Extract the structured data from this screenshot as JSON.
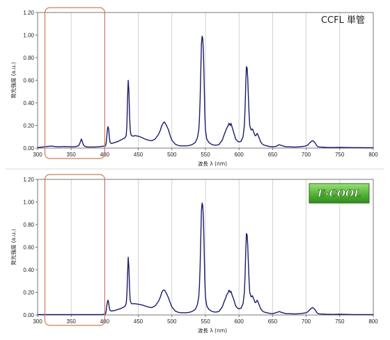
{
  "chart_data": [
    {
      "type": "line",
      "title": "CCFL 単管",
      "xlabel": "波長 λ (nm)",
      "ylabel": "発光強度 (a.u.)",
      "xlim": [
        300,
        800
      ],
      "ylim": [
        0,
        1.2
      ],
      "xticks": [
        "300",
        "350",
        "400",
        "450",
        "500",
        "550",
        "600",
        "650",
        "700",
        "750",
        "800"
      ],
      "yticks": [
        "0.00",
        "0.20",
        "0.40",
        "0.60",
        "0.80",
        "1.00",
        "1.20"
      ],
      "grid": "vertical",
      "highlight_range": [
        315,
        400
      ],
      "highlight_color": "#d07a5a",
      "line_color": "#1a1a6e",
      "series": [
        {
          "x": [
            300,
            305,
            310,
            315,
            320,
            325,
            330,
            335,
            340,
            345,
            350,
            355,
            360,
            362,
            364,
            365,
            366,
            367,
            368,
            370,
            372,
            375,
            380,
            385,
            390,
            395,
            400,
            401,
            402,
            403,
            404,
            405,
            406,
            407,
            408,
            410,
            415,
            420,
            425,
            430,
            432,
            433,
            434,
            435,
            436,
            437,
            438,
            439,
            440,
            442,
            445,
            450,
            455,
            460,
            465,
            470,
            475,
            480,
            483,
            485,
            487,
            488,
            489,
            490,
            492,
            495,
            498,
            500,
            505,
            510,
            515,
            520,
            525,
            530,
            535,
            538,
            540,
            541,
            542,
            543,
            544,
            545,
            546,
            547,
            548,
            549,
            550,
            552,
            555,
            560,
            565,
            570,
            575,
            578,
            580,
            582,
            584,
            585,
            586,
            587,
            588,
            590,
            592,
            595,
            598,
            600,
            603,
            606,
            608,
            609,
            610,
            611,
            612,
            613,
            614,
            615,
            616,
            618,
            620,
            622,
            624,
            625,
            626,
            627,
            628,
            630,
            632,
            634,
            636,
            638,
            640,
            645,
            650,
            655,
            660,
            665,
            670,
            675,
            680,
            685,
            690,
            695,
            700,
            703,
            705,
            707,
            708,
            709,
            710,
            711,
            712,
            714,
            716,
            718,
            720,
            725,
            730,
            740,
            750,
            760,
            770,
            780,
            790,
            800
          ],
          "y": [
            0.005,
            0.008,
            0.012,
            0.015,
            0.018,
            0.015,
            0.012,
            0.013,
            0.014,
            0.013,
            0.012,
            0.012,
            0.018,
            0.03,
            0.06,
            0.08,
            0.07,
            0.05,
            0.03,
            0.018,
            0.012,
            0.01,
            0.01,
            0.01,
            0.012,
            0.015,
            0.018,
            0.02,
            0.04,
            0.1,
            0.17,
            0.19,
            0.16,
            0.09,
            0.05,
            0.04,
            0.05,
            0.06,
            0.075,
            0.09,
            0.11,
            0.2,
            0.45,
            0.6,
            0.5,
            0.28,
            0.16,
            0.12,
            0.11,
            0.105,
            0.11,
            0.105,
            0.095,
            0.08,
            0.07,
            0.065,
            0.08,
            0.12,
            0.16,
            0.2,
            0.22,
            0.23,
            0.23,
            0.22,
            0.2,
            0.16,
            0.1,
            0.07,
            0.035,
            0.022,
            0.02,
            0.02,
            0.022,
            0.03,
            0.05,
            0.09,
            0.16,
            0.25,
            0.42,
            0.68,
            0.92,
            0.99,
            0.97,
            0.85,
            0.6,
            0.32,
            0.16,
            0.08,
            0.05,
            0.03,
            0.025,
            0.03,
            0.07,
            0.12,
            0.15,
            0.18,
            0.2,
            0.22,
            0.21,
            0.2,
            0.22,
            0.18,
            0.14,
            0.08,
            0.06,
            0.055,
            0.06,
            0.1,
            0.2,
            0.35,
            0.55,
            0.72,
            0.71,
            0.62,
            0.45,
            0.3,
            0.2,
            0.16,
            0.17,
            0.14,
            0.11,
            0.11,
            0.12,
            0.13,
            0.12,
            0.09,
            0.06,
            0.04,
            0.03,
            0.025,
            0.022,
            0.015,
            0.012,
            0.015,
            0.03,
            0.02,
            0.012,
            0.012,
            0.01,
            0.01,
            0.012,
            0.015,
            0.02,
            0.03,
            0.045,
            0.055,
            0.06,
            0.065,
            0.065,
            0.06,
            0.055,
            0.04,
            0.02,
            0.012,
            0.01,
            0.008,
            0.006,
            0.005,
            0.006,
            0.005,
            0.004,
            0.004,
            0.003,
            0.003
          ]
        }
      ]
    },
    {
      "type": "line",
      "title": "",
      "xlabel": "波長 λ (nm)",
      "ylabel": "発光強度 (a.u.)",
      "xlim": [
        300,
        800
      ],
      "ylim": [
        0,
        1.2
      ],
      "xticks": [
        "300",
        "350",
        "400",
        "450",
        "500",
        "550",
        "600",
        "650",
        "700",
        "750",
        "800"
      ],
      "yticks": [
        "0.00",
        "0.20",
        "0.40",
        "0.60",
        "0.80",
        "1.00",
        "1.20"
      ],
      "grid": "vertical",
      "highlight_range": [
        315,
        400
      ],
      "highlight_color": "#d07a5a",
      "line_color": "#1a1a6e",
      "badge": {
        "text": "E-COOL",
        "color": "#58b838"
      },
      "series": [
        {
          "x": [
            300,
            305,
            310,
            315,
            320,
            325,
            330,
            335,
            340,
            345,
            350,
            355,
            360,
            365,
            370,
            375,
            380,
            385,
            390,
            395,
            400,
            401,
            402,
            403,
            404,
            405,
            406,
            407,
            408,
            410,
            415,
            420,
            425,
            430,
            432,
            433,
            434,
            435,
            436,
            437,
            438,
            439,
            440,
            442,
            445,
            450,
            455,
            460,
            465,
            470,
            475,
            480,
            483,
            485,
            487,
            488,
            489,
            490,
            492,
            495,
            498,
            500,
            505,
            510,
            515,
            520,
            525,
            530,
            535,
            538,
            540,
            541,
            542,
            543,
            544,
            545,
            546,
            547,
            548,
            549,
            550,
            552,
            555,
            560,
            565,
            570,
            575,
            578,
            580,
            582,
            584,
            585,
            586,
            587,
            588,
            590,
            592,
            595,
            598,
            600,
            603,
            606,
            608,
            609,
            610,
            611,
            612,
            613,
            614,
            615,
            616,
            618,
            620,
            622,
            624,
            625,
            626,
            627,
            628,
            630,
            632,
            634,
            636,
            638,
            640,
            645,
            650,
            655,
            660,
            665,
            670,
            675,
            680,
            685,
            690,
            695,
            700,
            703,
            705,
            707,
            708,
            709,
            710,
            711,
            712,
            714,
            716,
            718,
            720,
            725,
            730,
            740,
            750,
            760,
            770,
            780,
            790,
            800
          ],
          "y": [
            0.003,
            0.003,
            0.003,
            0.003,
            0.003,
            0.003,
            0.003,
            0.003,
            0.003,
            0.003,
            0.003,
            0.003,
            0.003,
            0.003,
            0.003,
            0.003,
            0.003,
            0.003,
            0.003,
            0.004,
            0.006,
            0.008,
            0.03,
            0.08,
            0.12,
            0.13,
            0.1,
            0.06,
            0.04,
            0.035,
            0.04,
            0.05,
            0.06,
            0.075,
            0.1,
            0.18,
            0.36,
            0.51,
            0.42,
            0.22,
            0.13,
            0.11,
            0.1,
            0.1,
            0.1,
            0.095,
            0.09,
            0.08,
            0.07,
            0.065,
            0.08,
            0.12,
            0.16,
            0.2,
            0.22,
            0.22,
            0.22,
            0.21,
            0.19,
            0.15,
            0.1,
            0.07,
            0.035,
            0.022,
            0.02,
            0.02,
            0.022,
            0.03,
            0.05,
            0.09,
            0.16,
            0.25,
            0.42,
            0.68,
            0.92,
            0.99,
            0.97,
            0.85,
            0.6,
            0.32,
            0.16,
            0.08,
            0.05,
            0.03,
            0.025,
            0.03,
            0.07,
            0.12,
            0.15,
            0.18,
            0.2,
            0.22,
            0.21,
            0.2,
            0.21,
            0.17,
            0.14,
            0.08,
            0.06,
            0.055,
            0.06,
            0.1,
            0.2,
            0.35,
            0.55,
            0.72,
            0.71,
            0.62,
            0.45,
            0.3,
            0.2,
            0.16,
            0.17,
            0.14,
            0.11,
            0.11,
            0.12,
            0.13,
            0.12,
            0.09,
            0.06,
            0.04,
            0.03,
            0.025,
            0.022,
            0.015,
            0.012,
            0.02,
            0.03,
            0.02,
            0.012,
            0.012,
            0.01,
            0.01,
            0.012,
            0.015,
            0.02,
            0.03,
            0.045,
            0.055,
            0.06,
            0.065,
            0.065,
            0.06,
            0.055,
            0.04,
            0.02,
            0.012,
            0.01,
            0.008,
            0.006,
            0.005,
            0.006,
            0.005,
            0.004,
            0.004,
            0.003,
            0.003
          ]
        }
      ]
    }
  ]
}
